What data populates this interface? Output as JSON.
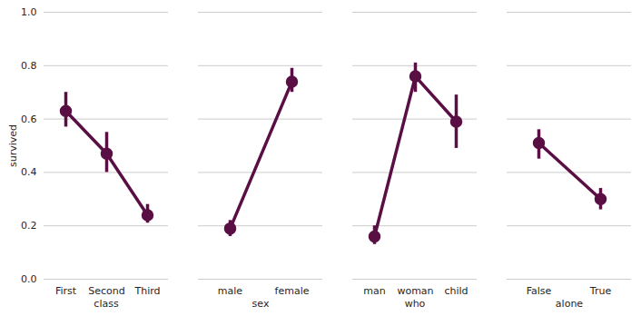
{
  "chart_data": [
    {
      "type": "line",
      "marker": "circle",
      "color": "#5a0f44",
      "grid": true,
      "x_label": "class",
      "y_label": "survived",
      "categories": [
        "First",
        "Second",
        "Third"
      ],
      "values": [
        0.63,
        0.47,
        0.24
      ],
      "ci_low": [
        0.57,
        0.4,
        0.21
      ],
      "ci_high": [
        0.7,
        0.55,
        0.28
      ],
      "ylim": [
        0,
        1
      ],
      "yticks": [
        {
          "value": 0,
          "label": "0.0"
        },
        0.2,
        0.4,
        0.6,
        0.8,
        {
          "value": 1,
          "label": "1.0"
        }
      ]
    },
    {
      "type": "line",
      "marker": "circle",
      "color": "#5a0f44",
      "grid": true,
      "x_label": "sex",
      "tick_labels": "x",
      "categories": [
        "male",
        "female"
      ],
      "values": [
        0.19,
        0.74
      ],
      "ci_low": [
        0.16,
        0.7
      ],
      "ci_high": [
        0.22,
        0.79
      ],
      "ylim": [
        0,
        1
      ],
      "yticks": [
        {
          "value": 0,
          "label": "0.0"
        },
        0.2,
        0.4,
        0.6,
        0.8,
        {
          "value": 1,
          "label": "1.0"
        }
      ]
    },
    {
      "type": "line",
      "marker": "circle",
      "color": "#5a0f44",
      "grid": true,
      "x_label": "who",
      "tick_labels": "x",
      "categories": [
        "man",
        "woman",
        "child"
      ],
      "values": [
        0.16,
        0.76,
        0.59
      ],
      "ci_low": [
        0.13,
        0.7,
        0.49
      ],
      "ci_high": [
        0.2,
        0.81,
        0.69
      ],
      "ylim": [
        0,
        1
      ],
      "yticks": [
        {
          "value": 0,
          "label": "0.0"
        },
        0.2,
        0.4,
        0.6,
        0.8,
        {
          "value": 1,
          "label": "1.0"
        }
      ]
    },
    {
      "type": "line",
      "marker": "circle",
      "color": "#5a0f44",
      "grid": true,
      "x_label": "alone",
      "tick_labels": "x",
      "categories": [
        "False",
        "True"
      ],
      "values": [
        0.51,
        0.3
      ],
      "ci_low": [
        0.45,
        0.26
      ],
      "ci_high": [
        0.56,
        0.34
      ],
      "ylim": [
        0,
        1
      ],
      "yticks": [
        {
          "value": 0,
          "label": "0.0"
        },
        0.2,
        0.4,
        0.6,
        0.8,
        {
          "value": 1,
          "label": "1.0"
        }
      ]
    }
  ]
}
